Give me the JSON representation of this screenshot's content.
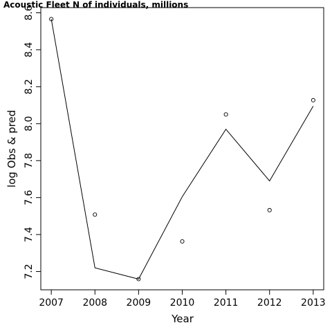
{
  "chart_data": {
    "type": "line",
    "title": "Acoustic Fleet   N of individuals, millions",
    "xlabel": "Year",
    "ylabel": "log Obs & pred",
    "x": [
      2007,
      2008,
      2009,
      2010,
      2011,
      2012,
      2013
    ],
    "x_ticks": [
      "2007",
      "2008",
      "2009",
      "2010",
      "2011",
      "2012",
      "2013"
    ],
    "y_ticks": [
      "7.2",
      "7.4",
      "7.6",
      "7.8",
      "8.0",
      "8.2",
      "8.4",
      "8.6"
    ],
    "xlim": [
      2006.76,
      2013.24
    ],
    "ylim": [
      7.101,
      8.628
    ],
    "grid": false,
    "series": [
      {
        "values": [
          8.566,
          7.508,
          7.159,
          7.363,
          8.05,
          7.532,
          8.127
        ],
        "style": "points",
        "marker": "open-circle"
      },
      {
        "values": [
          8.566,
          7.22,
          7.159,
          7.605,
          7.97,
          7.69,
          8.095
        ],
        "style": "line"
      }
    ]
  }
}
